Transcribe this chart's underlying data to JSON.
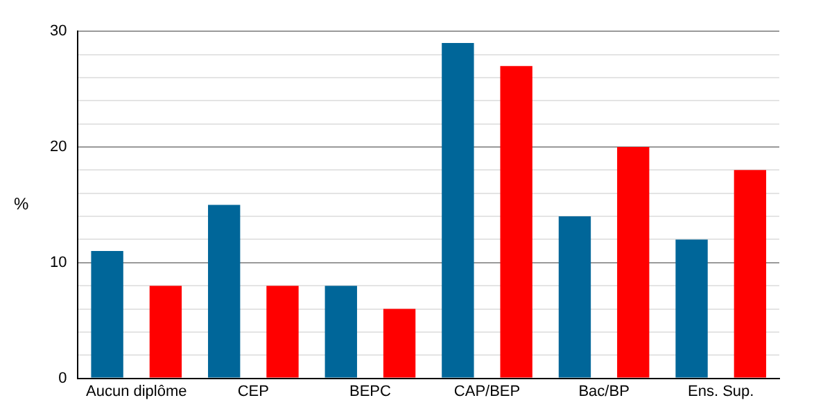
{
  "chart_data": {
    "type": "bar",
    "ylabel": "%",
    "categories": [
      "Aucun diplôme",
      "CEP",
      "BEPC",
      "CAP/BEP",
      "Bac/BP",
      "Ens. Sup."
    ],
    "series": [
      {
        "color": "#006699",
        "values": [
          11,
          15,
          8,
          29,
          14,
          12
        ]
      },
      {
        "color": "#ff0000",
        "values": [
          8,
          8,
          6,
          27,
          20,
          18
        ]
      }
    ],
    "ylim": [
      0,
      30
    ],
    "yticks": [
      0,
      {
        "value": 2,
        "label": null
      },
      {
        "value": 4,
        "label": null
      },
      {
        "value": 6,
        "label": null
      },
      {
        "value": 8,
        "label": null
      },
      10,
      {
        "value": 12,
        "label": null
      },
      {
        "value": 14,
        "label": null
      },
      {
        "value": 16,
        "label": null
      },
      {
        "value": 18,
        "label": null
      },
      20,
      {
        "value": 22,
        "label": null
      },
      {
        "value": 24,
        "label": null
      },
      {
        "value": 26,
        "label": null
      },
      {
        "value": 28,
        "label": null
      },
      30
    ],
    "grid": "y",
    "legend": false
  }
}
